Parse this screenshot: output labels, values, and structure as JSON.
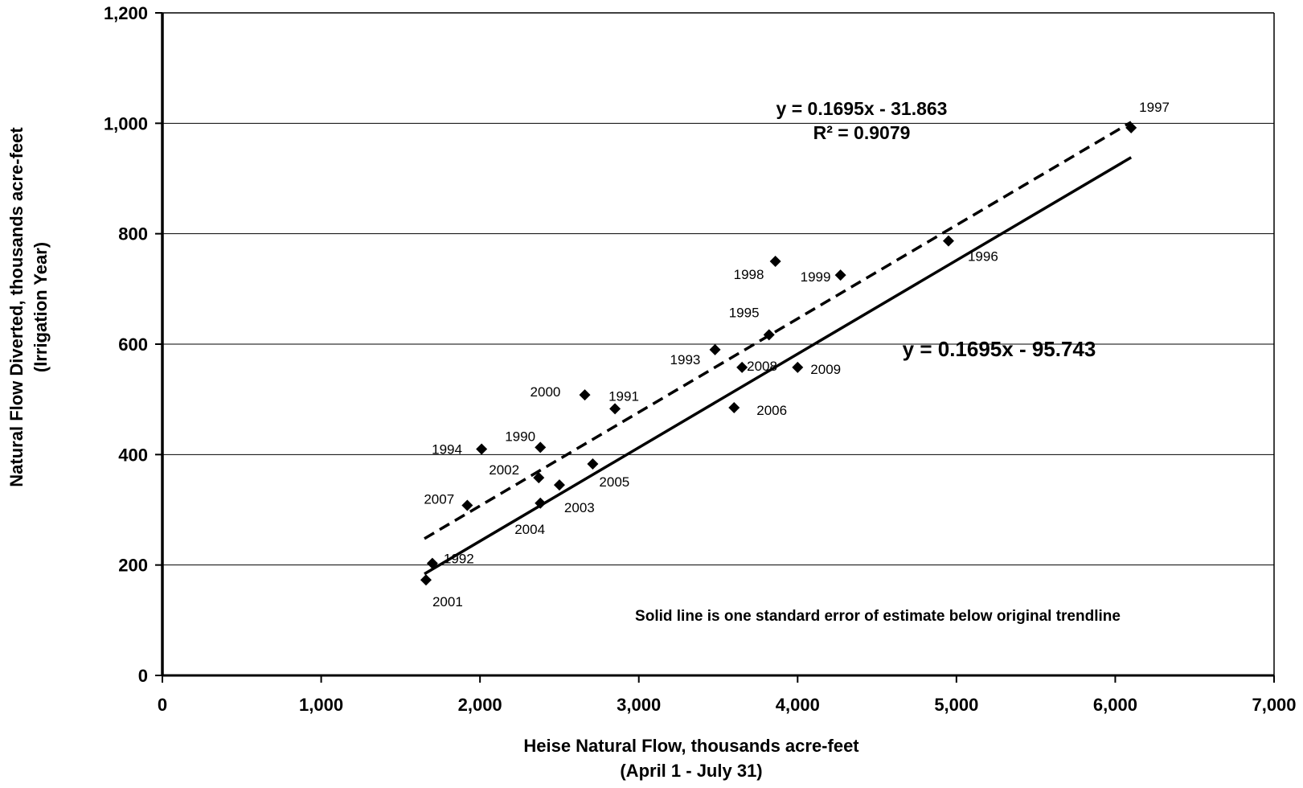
{
  "chart_data": {
    "type": "scatter",
    "xlabel": "Heise Natural Flow, thousands acre-feet",
    "xlabel_line2": "(April 1 - July 31)",
    "ylabel": "Natural Flow Diverted, thousands acre-feet",
    "ylabel_line2": "(Irrigation Year)",
    "xlim": [
      0,
      7000
    ],
    "ylim": [
      0,
      1200
    ],
    "x_ticks": [
      0,
      1000,
      2000,
      3000,
      4000,
      5000,
      6000,
      7000
    ],
    "x_tick_labels": [
      "0",
      "1,000",
      "2,000",
      "3,000",
      "4,000",
      "5,000",
      "6,000",
      "7,000"
    ],
    "y_ticks": [
      0,
      200,
      400,
      600,
      800,
      1000,
      1200
    ],
    "y_tick_labels": [
      "0",
      "200",
      "400",
      "600",
      "800",
      "1,000",
      "1,200"
    ],
    "grid": "horizontal",
    "points": [
      {
        "year": "1990",
        "x": 2380,
        "y": 413
      },
      {
        "year": "1991",
        "x": 2850,
        "y": 483
      },
      {
        "year": "1992",
        "x": 1700,
        "y": 203
      },
      {
        "year": "1993",
        "x": 3480,
        "y": 590
      },
      {
        "year": "1994",
        "x": 2010,
        "y": 410
      },
      {
        "year": "1995",
        "x": 3820,
        "y": 617
      },
      {
        "year": "1996",
        "x": 4950,
        "y": 787
      },
      {
        "year": "1997",
        "x": 6100,
        "y": 992
      },
      {
        "year": "1998",
        "x": 3860,
        "y": 750
      },
      {
        "year": "1999",
        "x": 4270,
        "y": 725
      },
      {
        "year": "2000",
        "x": 2660,
        "y": 508
      },
      {
        "year": "2001",
        "x": 1660,
        "y": 173
      },
      {
        "year": "2002",
        "x": 2370,
        "y": 358
      },
      {
        "year": "2003",
        "x": 2500,
        "y": 345
      },
      {
        "year": "2004",
        "x": 2380,
        "y": 312
      },
      {
        "year": "2005",
        "x": 2710,
        "y": 383
      },
      {
        "year": "2006",
        "x": 3600,
        "y": 485
      },
      {
        "year": "2007",
        "x": 1920,
        "y": 308
      },
      {
        "year": "2008",
        "x": 3650,
        "y": 558
      },
      {
        "year": "2009",
        "x": 4000,
        "y": 558
      }
    ],
    "trendlines": [
      {
        "equation": "y = 0.1695x - 31.863",
        "r2": "R² = 0.9079",
        "slope": 0.1695,
        "intercept": -31.863,
        "x_range": [
          1650,
          6100
        ],
        "style": "dashed"
      },
      {
        "equation": "y = 0.1695x - 95.743",
        "slope": 0.1695,
        "intercept": -95.743,
        "x_range": [
          1650,
          6100
        ],
        "style": "solid"
      }
    ],
    "annotation": "Solid line is one standard error of estimate below original trendline",
    "colors": {
      "marker": "#000000",
      "line": "#000000",
      "grid": "#000000"
    }
  }
}
